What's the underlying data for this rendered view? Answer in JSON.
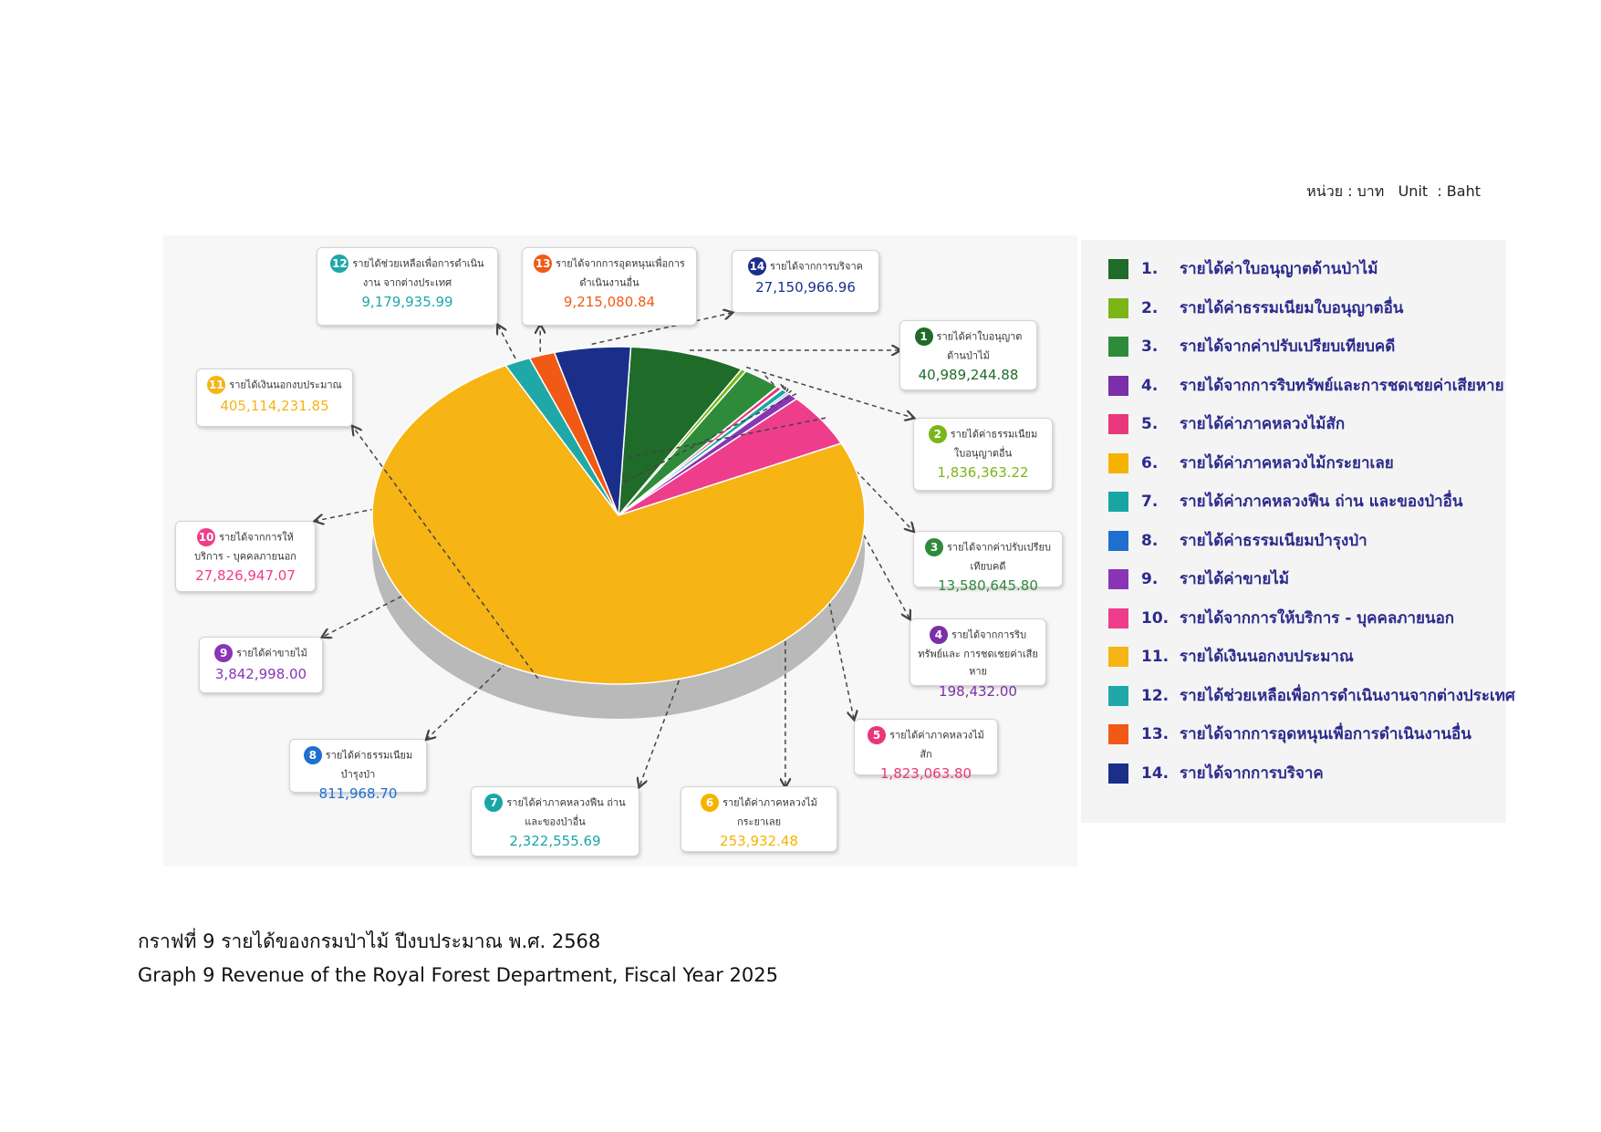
{
  "chart_data": {
    "type": "pie",
    "unit_label": "หน่วย : บาท   Unit  : Baht",
    "caption_th": "กราฟที่ 9 รายได้ของกรมป่าไม้ ปีงบประมาณ พ.ศ. 2568",
    "caption_en": "Graph 9 Revenue of the Royal Forest Department, Fiscal Year 2025",
    "legend_position": "right",
    "categories": [
      "รายได้ค่าใบอนุญาตด้านป่าไม้",
      "รายได้ค่าธรรมเนียมใบอนุญาตอื่น",
      "รายได้จากค่าปรับเปรียบเทียบคดี",
      "รายได้จากการริบทรัพย์และการชดเชยค่าเสียหาย",
      "รายได้ค่าภาคหลวงไม้สัก",
      "รายได้ค่าภาคหลวงไม้กระยาเลย",
      "รายได้ค่าภาคหลวงฟืน ถ่าน และของป่าอื่น",
      "รายได้ค่าธรรมเนียมบำรุงป่า",
      "รายได้ค่าขายไม้",
      "รายได้จากการให้บริการ - บุคคลภายนอก",
      "รายได้เงินนอกงบประมาณ",
      "รายได้ช่วยเหลือเพื่อการดำเนินงานจากต่างประเทศ",
      "รายได้จากการอุดหนุนเพื่อการดำเนินงานอื่น",
      "รายได้จากการบริจาค"
    ],
    "legend_numbers": [
      "1.",
      "2.",
      "3.",
      "4.",
      "5.",
      "6.",
      "7.",
      "8.",
      "9.",
      "10.",
      "11.",
      "12.",
      "13.",
      "14."
    ],
    "badge_numbers": [
      "1",
      "2",
      "3",
      "4",
      "5",
      "6",
      "7",
      "8",
      "9",
      "10",
      "11",
      "12",
      "13",
      "14"
    ],
    "callout_labels": [
      "รายได้ค่าใบอนุญาต ด้านป่าไม้",
      "รายได้ค่าธรรมเนียม ใบอนุญาตอื่น",
      "รายได้จากค่าปรับเปรียบเทียบคดี",
      "รายได้จากการริบทรัพย์และ การชดเชยค่าเสียหาย",
      "รายได้ค่าภาคหลวงไม้สัก",
      "รายได้ค่าภาคหลวงไม้กระยาเลย",
      "รายได้ค่าภาคหลวงฟืน ถ่าน และของป่าอื่น",
      "รายได้ค่าธรรมเนียมบำรุงป่า",
      "รายได้ค่าขายไม้",
      "รายได้จากการให้บริการ - บุคคลภายนอก",
      "รายได้เงินนอกงบประมาณ",
      "รายได้ช่วยเหลือเพื่อการดำเนินงาน จากต่างประเทศ",
      "รายได้จากการอุดหนุนเพื่อการ ดำเนินงานอื่น",
      "รายได้จากการบริจาค"
    ],
    "values": [
      40989244.88,
      1836363.22,
      13580645.8,
      198432.0,
      1823063.8,
      253932.48,
      2322555.69,
      811968.7,
      3842998.0,
      27826947.07,
      405114231.85,
      9179935.99,
      9215080.84,
      27150966.96
    ],
    "value_labels": [
      "40,989,244.88",
      "1,836,363.22",
      "13,580,645.80",
      "198,432.00",
      "1,823,063.80",
      "253,932.48",
      "2,322,555.69",
      "811,968.70",
      "3,842,998.00",
      "27,826,947.07",
      "405,114,231.85",
      "9,179,935.99",
      "9,215,080.84",
      "27,150,966.96"
    ],
    "colors": [
      "#1f6b2a",
      "#7cb518",
      "#2e8b3a",
      "#7b2fa8",
      "#e8377a",
      "#f5b300",
      "#1aa5a5",
      "#1e6fd0",
      "#8a35b5",
      "#ee3d8a",
      "#f6b415",
      "#20a8a8",
      "#f05a14",
      "#1a2f8a"
    ]
  }
}
